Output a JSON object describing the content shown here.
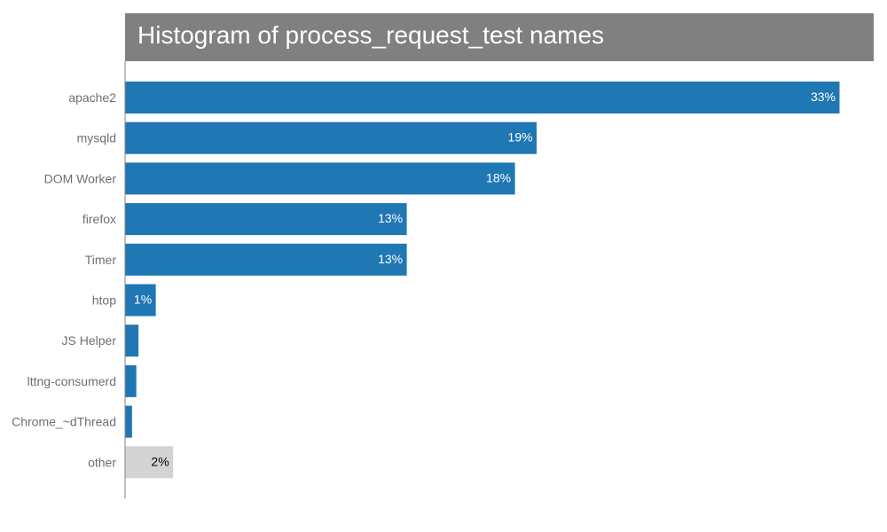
{
  "chart_data": {
    "type": "bar",
    "orientation": "horizontal",
    "title": "Histogram of process_request_test names",
    "categories": [
      "apache2",
      "mysqld",
      "DOM Worker",
      "firefox",
      "Timer",
      "htop",
      "JS Helper",
      "lttng-consumerd",
      "Chrome_~dThread",
      "other"
    ],
    "values": [
      33,
      19,
      18,
      13,
      13,
      1.4,
      0.6,
      0.5,
      0.3,
      2.2
    ],
    "value_labels": [
      "33%",
      "19%",
      "18%",
      "13%",
      "13%",
      "1%",
      "",
      "",
      "",
      "2%"
    ],
    "xlabel": "",
    "ylabel": "",
    "xlim": [
      0,
      34.6
    ],
    "grid": false,
    "legend": "none"
  },
  "colors": {
    "bar": "#1f77b4",
    "other_bar": "#d3d3d3",
    "title_background": "#808080",
    "title_text": "#ffffff",
    "category_text": "#6f6f6f",
    "value_text_on_bar": "#ffffff",
    "value_text_on_other": "#000000",
    "axis": "#808080"
  }
}
